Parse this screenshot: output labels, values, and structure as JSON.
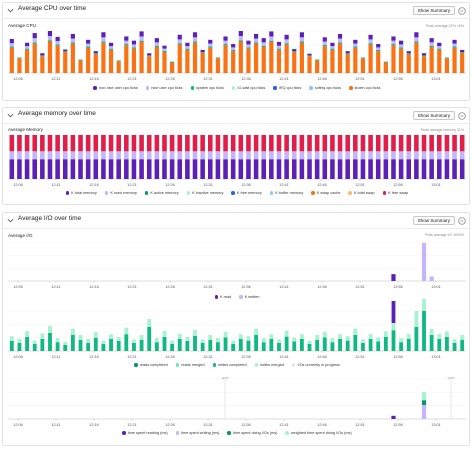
{
  "panels": {
    "cpu": {
      "title": "Average CPU over time",
      "summary_label": "Show Summary",
      "subtitle": "Average CPU",
      "peak_label": "Peak average CPU 16%",
      "x_ticks": [
        "12:06",
        "12:11",
        "12:16",
        "12:21",
        "12:26",
        "12:31",
        "12:36",
        "12:41",
        "12:46",
        "12:51",
        "12:56",
        "13:01"
      ],
      "legend": [
        {
          "label": "non-nice user cpu ticks",
          "color": "#5b21b6"
        },
        {
          "label": "nice user cpu ticks",
          "color": "#c4b5fd"
        },
        {
          "label": "system cpu ticks",
          "color": "#10b981"
        },
        {
          "label": "IO-wait cpu ticks",
          "color": "#a7f3d0"
        },
        {
          "label": "IRQ cpu ticks",
          "color": "#2563eb"
        },
        {
          "label": "softirq cpu ticks",
          "color": "#93c5fd"
        },
        {
          "label": "stolen cpu ticks",
          "color": "#f97316"
        }
      ]
    },
    "memory": {
      "title": "Average memory over time",
      "summary_label": "Show Summary",
      "subtitle": "Average Memory",
      "peak_label": "Peak average memory 31%",
      "x_ticks": [
        "12:06",
        "12:11",
        "12:16",
        "12:21",
        "12:26",
        "12:31",
        "12:36",
        "12:41",
        "12:46",
        "12:51",
        "12:56",
        "13:01"
      ],
      "legend": [
        {
          "label": "K total memory",
          "color": "#5b21b6"
        },
        {
          "label": "K used memory",
          "color": "#c4b5fd"
        },
        {
          "label": "K active memory",
          "color": "#059669"
        },
        {
          "label": "K inactive memory",
          "color": "#a7f3d0"
        },
        {
          "label": "K free memory",
          "color": "#2563eb"
        },
        {
          "label": "K buffer memory",
          "color": "#93c5fd"
        },
        {
          "label": "K swap cache",
          "color": "#f97316"
        },
        {
          "label": "K total swap",
          "color": "#fdba74"
        },
        {
          "label": "K free swap",
          "color": "#e11d48"
        }
      ]
    },
    "io": {
      "title": "Average I/O over time",
      "summary_label": "Show Summary",
      "subtitle": "Average I/O",
      "peak_label": "Peak average I/O 1000%",
      "x_ticks": [
        "12:06",
        "12:11",
        "12:16",
        "12:21",
        "12:26",
        "12:31",
        "12:36",
        "12:41",
        "12:46",
        "12:51",
        "12:56",
        "13:01"
      ],
      "legend_1": [
        {
          "label": "K read",
          "color": "#5b21b6"
        },
        {
          "label": "K written",
          "color": "#c4b5fd"
        }
      ],
      "legend_2": [
        {
          "label": "reads completed",
          "color": "#059669"
        },
        {
          "label": "reads merged",
          "color": "#6ee7b7"
        },
        {
          "label": "writes completed",
          "color": "#10b981"
        },
        {
          "label": "writes merged",
          "color": "#a7f3d0"
        },
        {
          "label": "I/Os currently in progress",
          "color": "#e5e7eb"
        }
      ],
      "legend_3": [
        {
          "label": "time spent reading (ms)",
          "color": "#5b21b6"
        },
        {
          "label": "time spent writing (ms)",
          "color": "#c4b5fd"
        },
        {
          "label": "time spent doing I/Os (ms)",
          "color": "#059669"
        },
        {
          "label": "weighted time spent doing I/Os (ms)",
          "color": "#a7f3d0"
        }
      ],
      "marker_label": "12:57"
    }
  },
  "chart_data": [
    {
      "type": "bar",
      "title": "Average CPU",
      "stacked": true,
      "bar_count": 60,
      "series": [
        {
          "name": "stolen cpu ticks",
          "color": "#f97316",
          "values": [
            0.6,
            0.35,
            0.55,
            0.7,
            0.4,
            0.75,
            0.65,
            0.5,
            0.7,
            0.3,
            0.6,
            0.45,
            0.72,
            0.55,
            0.28,
            0.66,
            0.58,
            0.74,
            0.4,
            0.62,
            0.5,
            0.25,
            0.68,
            0.55,
            0.72,
            0.48,
            0.6,
            0.35,
            0.66,
            0.52,
            0.75,
            0.58,
            0.7,
            0.62,
            0.74,
            0.55,
            0.68,
            0.5,
            0.72,
            0.4,
            0.3,
            0.64,
            0.55,
            0.7,
            0.45,
            0.6,
            0.35,
            0.68,
            0.52,
            0.25,
            0.66,
            0.58,
            0.45,
            0.72,
            0.4,
            0.62,
            0.55,
            0.35,
            0.6,
            0.48
          ]
        },
        {
          "name": "system cpu ticks",
          "color": "#10b981",
          "values": [
            0.03,
            0.02,
            0.03,
            0.03,
            0.02,
            0.03,
            0.03,
            0.02,
            0.03,
            0.02,
            0.03,
            0.02,
            0.03,
            0.03,
            0.02,
            0.03,
            0.03,
            0.03,
            0.02,
            0.03,
            0.03,
            0.02,
            0.03,
            0.03,
            0.03,
            0.02,
            0.03,
            0.02,
            0.03,
            0.03,
            0.03,
            0.03,
            0.03,
            0.03,
            0.03,
            0.03,
            0.03,
            0.02,
            0.03,
            0.02,
            0.02,
            0.03,
            0.03,
            0.03,
            0.02,
            0.03,
            0.02,
            0.03,
            0.03,
            0.02,
            0.03,
            0.03,
            0.02,
            0.03,
            0.02,
            0.03,
            0.03,
            0.02,
            0.03,
            0.02
          ]
        },
        {
          "name": "nice user cpu ticks",
          "color": "#c4b5fd",
          "values": [
            0.08,
            0.0,
            0.06,
            0.1,
            0.0,
            0.1,
            0.08,
            0.0,
            0.09,
            0.0,
            0.07,
            0.0,
            0.1,
            0.06,
            0.0,
            0.08,
            0.07,
            0.1,
            0.0,
            0.08,
            0.05,
            0.0,
            0.09,
            0.06,
            0.1,
            0.0,
            0.07,
            0.0,
            0.08,
            0.06,
            0.1,
            0.07,
            0.09,
            0.08,
            0.1,
            0.07,
            0.09,
            0.0,
            0.1,
            0.0,
            0.0,
            0.08,
            0.06,
            0.09,
            0.0,
            0.07,
            0.0,
            0.09,
            0.06,
            0.0,
            0.08,
            0.07,
            0.0,
            0.1,
            0.0,
            0.08,
            0.06,
            0.0,
            0.07,
            0.0
          ]
        },
        {
          "name": "non-nice user cpu ticks",
          "color": "#5b21b6",
          "values": [
            0.1,
            0.0,
            0.08,
            0.12,
            0.05,
            0.12,
            0.1,
            0.04,
            0.11,
            0.0,
            0.09,
            0.05,
            0.12,
            0.08,
            0.0,
            0.1,
            0.09,
            0.12,
            0.05,
            0.1,
            0.07,
            0.0,
            0.11,
            0.08,
            0.12,
            0.05,
            0.09,
            0.0,
            0.1,
            0.08,
            0.12,
            0.09,
            0.11,
            0.1,
            0.12,
            0.09,
            0.11,
            0.05,
            0.12,
            0.04,
            0.0,
            0.1,
            0.08,
            0.11,
            0.05,
            0.09,
            0.0,
            0.11,
            0.08,
            0.0,
            0.1,
            0.09,
            0.05,
            0.12,
            0.05,
            0.1,
            0.08,
            0.0,
            0.09,
            0.05
          ]
        }
      ]
    },
    {
      "type": "bar",
      "title": "Average Memory",
      "stacked": true,
      "bar_count": 60,
      "series": [
        {
          "name": "K total memory",
          "color": "#5b21b6",
          "values": [
            0.45
          ]
        },
        {
          "name": "K used memory",
          "color": "#c4b5fd",
          "values": [
            0.18
          ]
        },
        {
          "name": "K free swap",
          "color": "#e11d48",
          "values": [
            0.37
          ]
        }
      ]
    },
    {
      "type": "bar",
      "title": "Average I/O - K read / K written",
      "bar_count": 60,
      "series": [
        {
          "name": "K read",
          "color": "#5b21b6",
          "values": {
            "50": 0.18
          }
        },
        {
          "name": "K written",
          "color": "#c4b5fd",
          "values": {
            "54": 1.0,
            "55": 0.12
          }
        }
      ]
    },
    {
      "type": "bar",
      "title": "Average I/O - operations",
      "bar_count": 60,
      "series": [
        {
          "name": "writes completed",
          "color": "#10b981",
          "values": [
            0.25,
            0.2,
            0.35,
            0.18,
            0.3,
            0.45,
            0.22,
            0.15,
            0.4,
            0.28,
            0.2,
            0.33,
            0.18,
            0.3,
            0.25,
            0.42,
            0.2,
            0.28,
            0.6,
            0.22,
            0.35,
            0.18,
            0.3,
            0.25,
            0.38,
            0.2,
            0.28,
            0.22,
            0.34,
            0.18,
            0.3,
            0.26,
            0.4,
            0.22,
            0.3,
            0.2,
            0.36,
            0.24,
            0.3,
            0.18,
            0.28,
            0.34,
            0.22,
            0.3,
            0.26,
            0.4,
            0.2,
            0.3,
            0.24,
            0.35,
            0.52,
            0.22,
            0.3,
            0.6,
            1.0,
            0.4,
            0.3,
            0.35,
            0.2,
            0.28
          ]
        },
        {
          "name": "reads merged",
          "color": "#a7f3d0",
          "values": [
            0.12,
            0.1,
            0.15,
            0.08,
            0.14,
            0.18,
            0.1,
            0.08,
            0.16,
            0.12,
            0.1,
            0.14,
            0.08,
            0.12,
            0.1,
            0.16,
            0.09,
            0.12,
            0.2,
            0.1,
            0.15,
            0.08,
            0.13,
            0.1,
            0.15,
            0.09,
            0.12,
            0.1,
            0.14,
            0.08,
            0.12,
            0.11,
            0.16,
            0.1,
            0.12,
            0.09,
            0.15,
            0.1,
            0.12,
            0.08,
            0.12,
            0.14,
            0.1,
            0.12,
            0.11,
            0.16,
            0.09,
            0.12,
            0.1,
            0.14,
            0.18,
            0.1,
            0.12,
            0.4,
            0.3,
            0.15,
            0.12,
            0.14,
            0.09,
            0.12
          ]
        },
        {
          "name": "reads completed",
          "color": "#5b21b6",
          "values": {
            "50": 0.55
          }
        }
      ]
    },
    {
      "type": "bar",
      "title": "Average I/O - time spent",
      "bar_count": 60,
      "series": [
        {
          "name": "time spent reading (ms)",
          "color": "#5b21b6",
          "values": {
            "50": 0.08
          }
        },
        {
          "name": "time spent writing (ms)",
          "color": "#c4b5fd",
          "values": {
            "54": 0.35
          }
        },
        {
          "name": "time spent doing I/Os (ms)",
          "color": "#059669",
          "values": {
            "54": 0.12
          }
        },
        {
          "name": "weighted time spent doing I/Os (ms)",
          "color": "#a7f3d0",
          "values": {
            "54": 0.2
          }
        }
      ]
    }
  ]
}
